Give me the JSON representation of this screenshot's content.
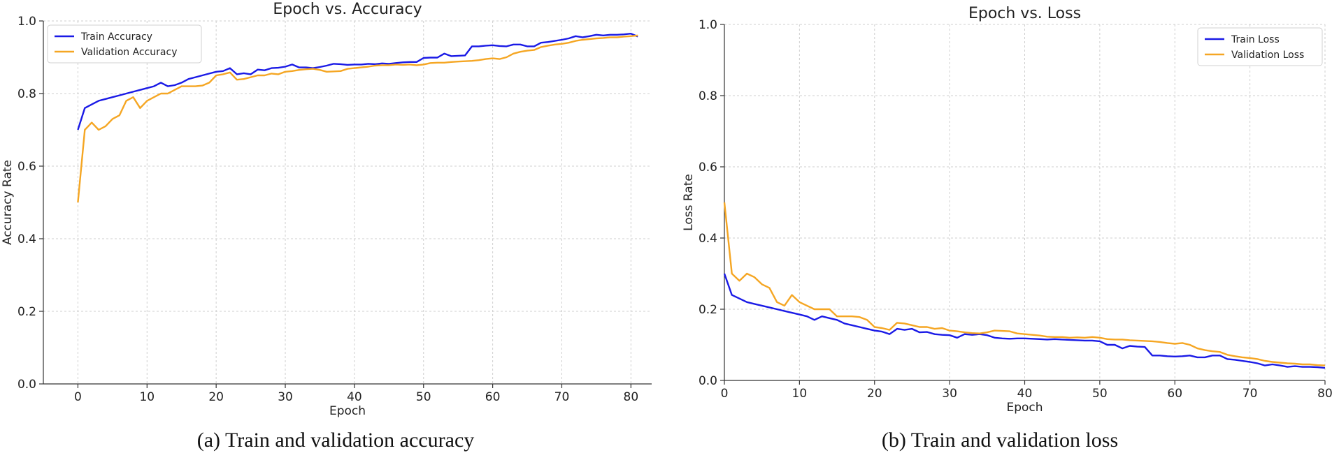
{
  "colors": {
    "train": "#1a1ae6",
    "validation": "#f5a623"
  },
  "chart_data": [
    {
      "type": "line",
      "title": "Epoch vs. Accuracy",
      "xlabel": "Epoch",
      "ylabel": "Accuracy Rate",
      "xlim": [
        -5,
        83
      ],
      "ylim": [
        0,
        1.0
      ],
      "xticks": [
        0,
        10,
        20,
        30,
        40,
        50,
        60,
        70,
        80
      ],
      "yticks": [
        0.0,
        0.2,
        0.4,
        0.6,
        0.8,
        1.0
      ],
      "legend_position": "top-left",
      "caption": "(a) Train and validation accuracy",
      "series": [
        {
          "name": "Train Accuracy",
          "color": "#1a1ae6",
          "x": [
            0,
            1,
            2,
            3,
            4,
            5,
            6,
            7,
            8,
            9,
            10,
            11,
            12,
            13,
            14,
            15,
            16,
            17,
            18,
            19,
            20,
            21,
            22,
            23,
            24,
            25,
            26,
            27,
            28,
            29,
            30,
            31,
            32,
            33,
            34,
            35,
            36,
            37,
            38,
            39,
            40,
            41,
            42,
            43,
            44,
            45,
            46,
            47,
            48,
            49,
            50,
            51,
            52,
            53,
            54,
            55,
            56,
            57,
            58,
            59,
            60,
            61,
            62,
            63,
            64,
            65,
            66,
            67,
            68,
            69,
            70,
            71,
            72,
            73,
            74,
            75,
            76,
            77,
            78,
            79,
            80,
            81
          ],
          "values": [
            0.7,
            0.76,
            0.77,
            0.78,
            0.785,
            0.79,
            0.795,
            0.8,
            0.805,
            0.81,
            0.815,
            0.82,
            0.83,
            0.82,
            0.823,
            0.83,
            0.84,
            0.845,
            0.85,
            0.855,
            0.86,
            0.862,
            0.87,
            0.853,
            0.856,
            0.853,
            0.866,
            0.864,
            0.87,
            0.871,
            0.874,
            0.88,
            0.872,
            0.872,
            0.87,
            0.873,
            0.877,
            0.882,
            0.881,
            0.879,
            0.88,
            0.88,
            0.882,
            0.881,
            0.883,
            0.882,
            0.884,
            0.886,
            0.887,
            0.887,
            0.898,
            0.899,
            0.899,
            0.91,
            0.903,
            0.904,
            0.905,
            0.93,
            0.93,
            0.932,
            0.933,
            0.931,
            0.93,
            0.935,
            0.935,
            0.93,
            0.93,
            0.94,
            0.942,
            0.945,
            0.948,
            0.952,
            0.958,
            0.955,
            0.958,
            0.962,
            0.96,
            0.962,
            0.962,
            0.963,
            0.965,
            0.957
          ]
        },
        {
          "name": "Validation Accuracy",
          "color": "#f5a623",
          "x": [
            0,
            1,
            2,
            3,
            4,
            5,
            6,
            7,
            8,
            9,
            10,
            11,
            12,
            13,
            14,
            15,
            16,
            17,
            18,
            19,
            20,
            21,
            22,
            23,
            24,
            25,
            26,
            27,
            28,
            29,
            30,
            31,
            32,
            33,
            34,
            35,
            36,
            37,
            38,
            39,
            40,
            41,
            42,
            43,
            44,
            45,
            46,
            47,
            48,
            49,
            50,
            51,
            52,
            53,
            54,
            55,
            56,
            57,
            58,
            59,
            60,
            61,
            62,
            63,
            64,
            65,
            66,
            67,
            68,
            69,
            70,
            71,
            72,
            73,
            74,
            75,
            76,
            77,
            78,
            79,
            80,
            81
          ],
          "values": [
            0.5,
            0.7,
            0.72,
            0.7,
            0.71,
            0.73,
            0.74,
            0.78,
            0.79,
            0.76,
            0.78,
            0.79,
            0.8,
            0.8,
            0.81,
            0.82,
            0.82,
            0.82,
            0.822,
            0.83,
            0.85,
            0.853,
            0.858,
            0.838,
            0.84,
            0.845,
            0.85,
            0.85,
            0.855,
            0.853,
            0.86,
            0.862,
            0.865,
            0.867,
            0.868,
            0.865,
            0.86,
            0.861,
            0.862,
            0.868,
            0.87,
            0.872,
            0.874,
            0.877,
            0.878,
            0.878,
            0.88,
            0.879,
            0.88,
            0.878,
            0.88,
            0.884,
            0.885,
            0.885,
            0.887,
            0.888,
            0.889,
            0.89,
            0.892,
            0.895,
            0.897,
            0.895,
            0.9,
            0.91,
            0.915,
            0.918,
            0.92,
            0.928,
            0.932,
            0.935,
            0.937,
            0.94,
            0.945,
            0.948,
            0.95,
            0.952,
            0.953,
            0.955,
            0.955,
            0.957,
            0.958,
            0.96
          ]
        }
      ]
    },
    {
      "type": "line",
      "title": "Epoch vs. Loss",
      "xlabel": "Epoch",
      "ylabel": "Loss Rate",
      "xlim": [
        0,
        80
      ],
      "ylim": [
        0,
        1.0
      ],
      "xticks": [
        0,
        10,
        20,
        30,
        40,
        50,
        60,
        70,
        80
      ],
      "yticks": [
        0.0,
        0.2,
        0.4,
        0.6,
        0.8,
        1.0
      ],
      "legend_position": "top-right",
      "caption": "(b) Train and validation loss",
      "series": [
        {
          "name": "Train Loss",
          "color": "#1a1ae6",
          "x": [
            0,
            1,
            2,
            3,
            4,
            5,
            6,
            7,
            8,
            9,
            10,
            11,
            12,
            13,
            14,
            15,
            16,
            17,
            18,
            19,
            20,
            21,
            22,
            23,
            24,
            25,
            26,
            27,
            28,
            29,
            30,
            31,
            32,
            33,
            34,
            35,
            36,
            37,
            38,
            39,
            40,
            41,
            42,
            43,
            44,
            45,
            46,
            47,
            48,
            49,
            50,
            51,
            52,
            53,
            54,
            55,
            56,
            57,
            58,
            59,
            60,
            61,
            62,
            63,
            64,
            65,
            66,
            67,
            68,
            69,
            70,
            71,
            72,
            73,
            74,
            75,
            76,
            77,
            78,
            79,
            80
          ],
          "values": [
            0.3,
            0.24,
            0.23,
            0.22,
            0.215,
            0.21,
            0.205,
            0.2,
            0.195,
            0.19,
            0.185,
            0.18,
            0.17,
            0.18,
            0.175,
            0.17,
            0.16,
            0.155,
            0.15,
            0.145,
            0.14,
            0.137,
            0.13,
            0.145,
            0.142,
            0.145,
            0.135,
            0.136,
            0.13,
            0.128,
            0.127,
            0.12,
            0.13,
            0.128,
            0.13,
            0.127,
            0.12,
            0.118,
            0.117,
            0.118,
            0.118,
            0.117,
            0.116,
            0.115,
            0.116,
            0.115,
            0.114,
            0.113,
            0.112,
            0.112,
            0.11,
            0.1,
            0.1,
            0.09,
            0.097,
            0.095,
            0.094,
            0.07,
            0.07,
            0.068,
            0.067,
            0.068,
            0.07,
            0.065,
            0.065,
            0.07,
            0.07,
            0.06,
            0.058,
            0.055,
            0.052,
            0.048,
            0.042,
            0.045,
            0.042,
            0.038,
            0.04,
            0.038,
            0.038,
            0.037,
            0.035
          ]
        },
        {
          "name": "Validation Loss",
          "color": "#f5a623",
          "x": [
            0,
            1,
            2,
            3,
            4,
            5,
            6,
            7,
            8,
            9,
            10,
            11,
            12,
            13,
            14,
            15,
            16,
            17,
            18,
            19,
            20,
            21,
            22,
            23,
            24,
            25,
            26,
            27,
            28,
            29,
            30,
            31,
            32,
            33,
            34,
            35,
            36,
            37,
            38,
            39,
            40,
            41,
            42,
            43,
            44,
            45,
            46,
            47,
            48,
            49,
            50,
            51,
            52,
            53,
            54,
            55,
            56,
            57,
            58,
            59,
            60,
            61,
            62,
            63,
            64,
            65,
            66,
            67,
            68,
            69,
            70,
            71,
            72,
            73,
            74,
            75,
            76,
            77,
            78,
            79,
            80
          ],
          "values": [
            0.5,
            0.3,
            0.28,
            0.3,
            0.29,
            0.27,
            0.26,
            0.22,
            0.21,
            0.24,
            0.22,
            0.21,
            0.2,
            0.2,
            0.2,
            0.18,
            0.18,
            0.18,
            0.178,
            0.17,
            0.15,
            0.147,
            0.142,
            0.162,
            0.16,
            0.155,
            0.15,
            0.15,
            0.145,
            0.147,
            0.14,
            0.138,
            0.135,
            0.133,
            0.132,
            0.135,
            0.14,
            0.139,
            0.138,
            0.132,
            0.13,
            0.128,
            0.126,
            0.123,
            0.122,
            0.122,
            0.12,
            0.121,
            0.12,
            0.122,
            0.12,
            0.116,
            0.115,
            0.115,
            0.113,
            0.112,
            0.111,
            0.11,
            0.108,
            0.105,
            0.103,
            0.105,
            0.1,
            0.09,
            0.085,
            0.082,
            0.08,
            0.072,
            0.068,
            0.065,
            0.063,
            0.06,
            0.055,
            0.052,
            0.05,
            0.048,
            0.047,
            0.045,
            0.045,
            0.043,
            0.042
          ]
        }
      ]
    }
  ]
}
